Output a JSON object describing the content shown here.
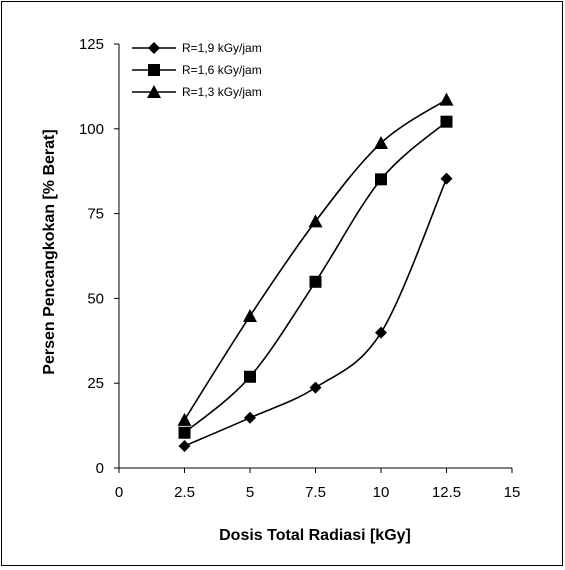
{
  "chart_data": {
    "type": "line",
    "title": "",
    "xlabel": "Dosis Total Radiasi [kGy]",
    "ylabel": "Persen Pencangkokan [% Berat]",
    "xlim": [
      0,
      15
    ],
    "ylim": [
      0,
      125
    ],
    "xticks": [
      0,
      2.5,
      5,
      7.5,
      10,
      12.5,
      15
    ],
    "xtick_labels": [
      "0",
      "2.5",
      "5",
      "7.5",
      "10",
      "12.5",
      "15"
    ],
    "yticks": [
      0,
      25,
      50,
      75,
      100,
      125
    ],
    "ytick_labels": [
      "0",
      "25",
      "50",
      "75",
      "100",
      "125"
    ],
    "grid": false,
    "legend_position": "top-left",
    "series": [
      {
        "name": "R=1,9 kGy/jam",
        "marker": "diamond",
        "x": [
          2.5,
          5,
          7.5,
          10,
          12.5
        ],
        "y": [
          6.5,
          14.8,
          23.7,
          39.9,
          85.3
        ]
      },
      {
        "name": "R=1,6 kGy/jam",
        "marker": "square",
        "x": [
          2.5,
          5,
          7.5,
          10,
          12.5
        ],
        "y": [
          10.4,
          26.9,
          54.9,
          85.1,
          102.1
        ]
      },
      {
        "name": "R=1,3 kGy/jam",
        "marker": "triangle",
        "x": [
          2.5,
          5,
          7.5,
          10,
          12.5
        ],
        "y": [
          14.2,
          44.8,
          72.7,
          95.8,
          108.6
        ]
      }
    ]
  }
}
